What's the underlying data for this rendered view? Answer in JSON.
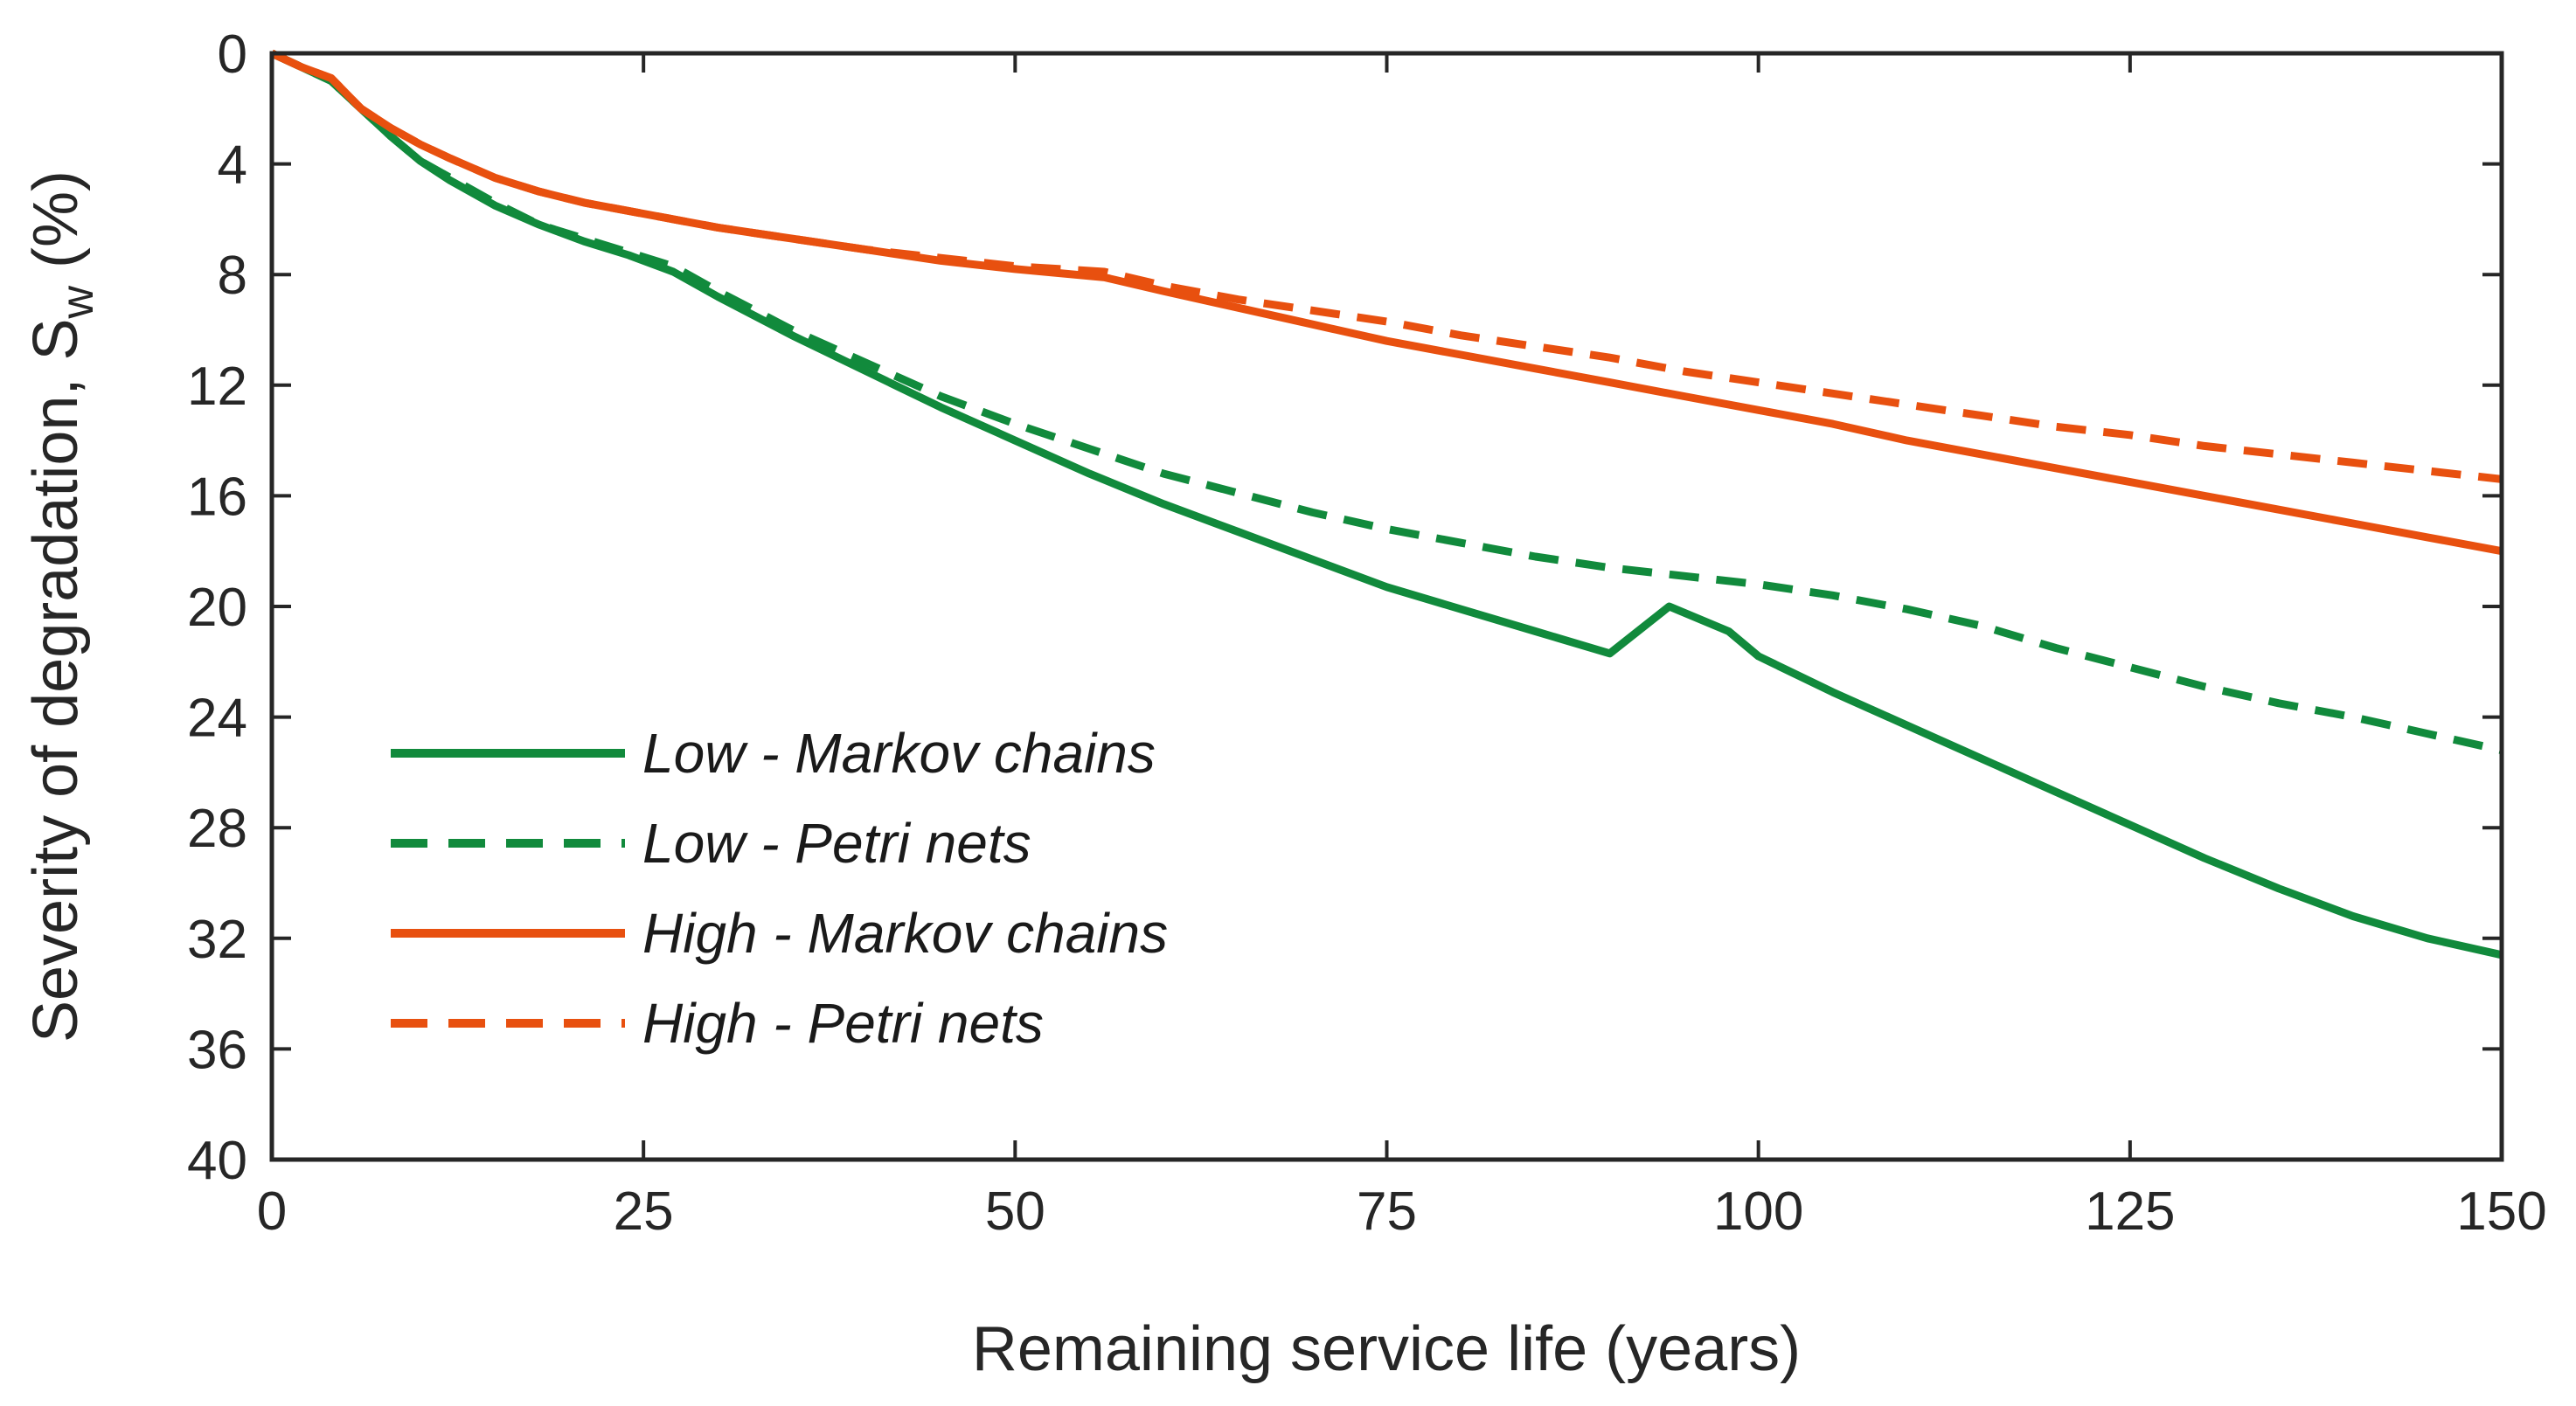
{
  "chart_data": {
    "type": "line",
    "title": "",
    "xlabel": "Remaining service life (years)",
    "ylabel": {
      "prefix": "Severity of degradation, S",
      "subscript": "w",
      "suffix": " (%)"
    },
    "xlim": [
      0,
      150
    ],
    "ylim": [
      0,
      40
    ],
    "y_reversed": true,
    "grid": false,
    "legend_position": "lower-left",
    "xticks": [
      0,
      25,
      50,
      75,
      100,
      125,
      150
    ],
    "xtick_labels": [
      "0",
      "25",
      "50",
      "75",
      "100",
      "125",
      "150"
    ],
    "yticks": [
      0,
      4,
      8,
      12,
      16,
      20,
      24,
      28,
      32,
      36,
      40
    ],
    "ytick_labels": [
      "0",
      "4",
      "8",
      "12",
      "16",
      "20",
      "24",
      "28",
      "32",
      "36",
      "40"
    ],
    "series": [
      {
        "name": "Low - Markov chains",
        "color": "#118a3c",
        "dash": "solid",
        "x": [
          0,
          2,
          4,
          6,
          8,
          10,
          12,
          15,
          18,
          21,
          24,
          27,
          30,
          35,
          40,
          45,
          50,
          55,
          60,
          65,
          70,
          75,
          80,
          85,
          90,
          94,
          98,
          100,
          105,
          110,
          115,
          120,
          125,
          130,
          135,
          140,
          145,
          150
        ],
        "y": [
          0,
          0.5,
          1.0,
          2.0,
          3.0,
          3.9,
          4.6,
          5.5,
          6.2,
          6.8,
          7.3,
          7.9,
          8.8,
          10.2,
          11.5,
          12.8,
          14.0,
          15.2,
          16.3,
          17.3,
          18.3,
          19.3,
          20.1,
          20.9,
          21.7,
          20.0,
          20.9,
          21.8,
          23.1,
          24.3,
          25.5,
          26.7,
          27.9,
          29.1,
          30.2,
          31.2,
          32.0,
          32.6
        ]
      },
      {
        "name": "Low - Petri nets",
        "color": "#118a3c",
        "dash": "dashed",
        "x": [
          0,
          2,
          4,
          6,
          8,
          10,
          12,
          15,
          18,
          21,
          24,
          27,
          30,
          35,
          40,
          45,
          50,
          55,
          60,
          65,
          70,
          75,
          80,
          85,
          90,
          95,
          100,
          105,
          110,
          115,
          120,
          125,
          130,
          135,
          140,
          145,
          150
        ],
        "y": [
          0,
          0.5,
          1.0,
          2.0,
          3.0,
          3.9,
          4.5,
          5.4,
          6.2,
          6.7,
          7.2,
          7.7,
          8.6,
          10.0,
          11.2,
          12.4,
          13.4,
          14.3,
          15.2,
          15.9,
          16.6,
          17.2,
          17.7,
          18.2,
          18.6,
          18.9,
          19.2,
          19.6,
          20.1,
          20.7,
          21.5,
          22.2,
          22.9,
          23.5,
          24.0,
          24.6,
          25.2
        ]
      },
      {
        "name": "High - Markov chains",
        "color": "#e8500f",
        "dash": "solid",
        "x": [
          0,
          2,
          4,
          6,
          8,
          10,
          12,
          15,
          18,
          21,
          24,
          27,
          30,
          35,
          40,
          45,
          50,
          56,
          60,
          65,
          70,
          75,
          80,
          85,
          90,
          95,
          100,
          105,
          110,
          115,
          120,
          125,
          130,
          135,
          140,
          145,
          150
        ],
        "y": [
          0,
          0.5,
          0.9,
          2.0,
          2.7,
          3.3,
          3.8,
          4.5,
          5.0,
          5.4,
          5.7,
          6.0,
          6.3,
          6.7,
          7.1,
          7.5,
          7.8,
          8.1,
          8.6,
          9.2,
          9.8,
          10.4,
          10.9,
          11.4,
          11.9,
          12.4,
          12.9,
          13.4,
          14.0,
          14.5,
          15.0,
          15.5,
          16.0,
          16.5,
          17.0,
          17.5,
          18.0
        ]
      },
      {
        "name": "High - Petri nets",
        "color": "#e8500f",
        "dash": "dashed",
        "x": [
          0,
          2,
          4,
          6,
          8,
          10,
          12,
          15,
          18,
          21,
          24,
          27,
          30,
          35,
          40,
          45,
          50,
          56,
          60,
          65,
          70,
          75,
          80,
          85,
          90,
          95,
          100,
          105,
          110,
          115,
          120,
          125,
          130,
          135,
          140,
          145,
          150
        ],
        "y": [
          0,
          0.5,
          0.9,
          2.0,
          2.7,
          3.3,
          3.8,
          4.5,
          5.0,
          5.4,
          5.7,
          6.0,
          6.3,
          6.7,
          7.1,
          7.4,
          7.7,
          7.9,
          8.4,
          8.9,
          9.3,
          9.7,
          10.2,
          10.6,
          11.0,
          11.5,
          11.9,
          12.3,
          12.7,
          13.1,
          13.5,
          13.8,
          14.2,
          14.5,
          14.8,
          15.1,
          15.4
        ]
      }
    ]
  }
}
